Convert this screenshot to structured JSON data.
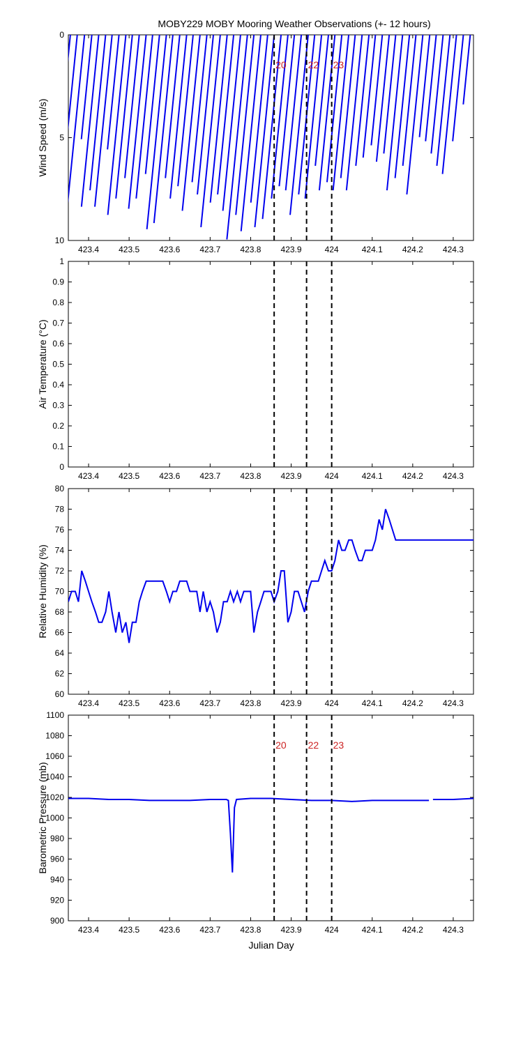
{
  "figure": {
    "title": "MOBY229 MOBY Mooring Weather Observations (+- 12 hours)",
    "xlabel": "Julian Day"
  },
  "marker_lines": [
    {
      "x": 423.858,
      "label": "20"
    },
    {
      "x": 423.938,
      "label": "22"
    },
    {
      "x": 424.0,
      "label": "23"
    }
  ],
  "chart_data": [
    {
      "type": "line",
      "subtype": "wind-stick",
      "name": "wind",
      "ylabel": "Wind Speed (m/s)",
      "xlim": [
        423.35,
        424.35
      ],
      "ylim": [
        0,
        10
      ],
      "y_reversed": true,
      "xticks": [
        "423.4",
        "423.5",
        "423.6",
        "423.7",
        "423.8",
        "423.9",
        "424",
        "424.1",
        "424.2",
        "424.3"
      ],
      "yticks": [
        "0",
        "5",
        "10"
      ],
      "show_marker_labels": true,
      "sticks": [
        {
          "x": 423.355,
          "speed": 6.8
        },
        {
          "x": 423.372,
          "speed": 8.2
        },
        {
          "x": 423.39,
          "speed": 8.9
        },
        {
          "x": 423.408,
          "speed": 5.1
        },
        {
          "x": 423.425,
          "speed": 8.4
        },
        {
          "x": 423.442,
          "speed": 7.6
        },
        {
          "x": 423.458,
          "speed": 8.4
        },
        {
          "x": 423.475,
          "speed": 5.6
        },
        {
          "x": 423.492,
          "speed": 8.8
        },
        {
          "x": 423.508,
          "speed": 8.0
        },
        {
          "x": 423.525,
          "speed": 7.0
        },
        {
          "x": 423.542,
          "speed": 8.5
        },
        {
          "x": 423.558,
          "speed": 8.0
        },
        {
          "x": 423.575,
          "speed": 6.8
        },
        {
          "x": 423.592,
          "speed": 9.5
        },
        {
          "x": 423.608,
          "speed": 9.2
        },
        {
          "x": 423.625,
          "speed": 7.0
        },
        {
          "x": 423.642,
          "speed": 8.0
        },
        {
          "x": 423.658,
          "speed": 7.4
        },
        {
          "x": 423.675,
          "speed": 8.6
        },
        {
          "x": 423.692,
          "speed": 7.2
        },
        {
          "x": 423.708,
          "speed": 7.8
        },
        {
          "x": 423.725,
          "speed": 9.4
        },
        {
          "x": 423.742,
          "speed": 8.2
        },
        {
          "x": 423.758,
          "speed": 7.8
        },
        {
          "x": 423.775,
          "speed": 8.6
        },
        {
          "x": 423.792,
          "speed": 10.0
        },
        {
          "x": 423.808,
          "speed": 8.8
        },
        {
          "x": 423.825,
          "speed": 9.6
        },
        {
          "x": 423.842,
          "speed": 8.2
        },
        {
          "x": 423.858,
          "speed": 9.4
        },
        {
          "x": 423.875,
          "speed": 9.0
        },
        {
          "x": 423.892,
          "speed": 8.0
        },
        {
          "x": 423.908,
          "speed": 7.4
        },
        {
          "x": 423.925,
          "speed": 7.6
        },
        {
          "x": 423.942,
          "speed": 8.8
        },
        {
          "x": 423.958,
          "speed": 7.8
        },
        {
          "x": 423.975,
          "speed": 8.0
        },
        {
          "x": 423.992,
          "speed": 6.4
        },
        {
          "x": 424.008,
          "speed": 7.6
        },
        {
          "x": 424.025,
          "speed": 7.2
        },
        {
          "x": 424.042,
          "speed": 7.6
        },
        {
          "x": 424.058,
          "speed": 7.0
        },
        {
          "x": 424.075,
          "speed": 7.6
        },
        {
          "x": 424.092,
          "speed": 6.4
        },
        {
          "x": 424.108,
          "speed": 6.0
        },
        {
          "x": 424.125,
          "speed": 5.4
        },
        {
          "x": 424.142,
          "speed": 6.2
        },
        {
          "x": 424.158,
          "speed": 5.8
        },
        {
          "x": 424.175,
          "speed": 7.6
        },
        {
          "x": 424.192,
          "speed": 7.0
        },
        {
          "x": 424.208,
          "speed": 6.4
        },
        {
          "x": 424.225,
          "speed": 7.8
        },
        {
          "x": 424.242,
          "speed": 5.0
        },
        {
          "x": 424.258,
          "speed": 5.2
        },
        {
          "x": 424.275,
          "speed": 5.8
        },
        {
          "x": 424.292,
          "speed": 6.4
        },
        {
          "x": 424.308,
          "speed": 6.8
        },
        {
          "x": 424.325,
          "speed": 5.2
        },
        {
          "x": 424.342,
          "speed": 3.4
        }
      ]
    },
    {
      "type": "line",
      "name": "air-temperature",
      "ylabel": "Air Temperature (°C)",
      "xlim": [
        423.35,
        424.35
      ],
      "ylim": [
        0,
        1
      ],
      "xticks": [
        "423.4",
        "423.5",
        "423.6",
        "423.7",
        "423.8",
        "423.9",
        "424",
        "424.1",
        "424.2",
        "424.3"
      ],
      "yticks": [
        "0",
        "0.1",
        "0.2",
        "0.3",
        "0.4",
        "0.5",
        "0.6",
        "0.7",
        "0.8",
        "0.9",
        "1"
      ],
      "show_marker_labels": false,
      "x": [],
      "y": []
    },
    {
      "type": "line",
      "name": "relative-humidity",
      "ylabel": "Relative Humidity (%)",
      "xlim": [
        423.35,
        424.35
      ],
      "ylim": [
        60,
        80
      ],
      "xticks": [
        "423.4",
        "423.5",
        "423.6",
        "423.7",
        "423.8",
        "423.9",
        "424",
        "424.1",
        "424.2",
        "424.3"
      ],
      "yticks": [
        "60",
        "62",
        "64",
        "66",
        "68",
        "70",
        "72",
        "74",
        "76",
        "78",
        "80"
      ],
      "show_marker_labels": false,
      "x": [
        423.35,
        423.358,
        423.367,
        423.375,
        423.383,
        423.392,
        423.4,
        423.408,
        423.417,
        423.425,
        423.433,
        423.442,
        423.45,
        423.458,
        423.467,
        423.475,
        423.483,
        423.492,
        423.5,
        423.508,
        423.517,
        423.525,
        423.533,
        423.542,
        423.55,
        423.558,
        423.567,
        423.575,
        423.583,
        423.592,
        423.6,
        423.608,
        423.617,
        423.625,
        423.633,
        423.642,
        423.65,
        423.658,
        423.667,
        423.675,
        423.683,
        423.692,
        423.7,
        423.708,
        423.717,
        423.725,
        423.733,
        423.742,
        423.75,
        423.758,
        423.767,
        423.775,
        423.783,
        423.792,
        423.8,
        423.808,
        423.817,
        423.825,
        423.833,
        423.842,
        423.85,
        423.858,
        423.867,
        423.875,
        423.883,
        423.892,
        423.9,
        423.908,
        423.917,
        423.925,
        423.933,
        423.942,
        423.95,
        423.958,
        423.967,
        423.975,
        423.983,
        423.992,
        424.0,
        424.008,
        424.017,
        424.025,
        424.033,
        424.042,
        424.05,
        424.058,
        424.067,
        424.075,
        424.083,
        424.092,
        424.1,
        424.108,
        424.117,
        424.125,
        424.133,
        424.142,
        424.15,
        424.158,
        424.167,
        424.175,
        424.183,
        424.192,
        424.2,
        424.208,
        424.217,
        424.225,
        424.233,
        424.242,
        424.25,
        424.258,
        424.267,
        424.275,
        424.283,
        424.292,
        424.3,
        424.308,
        424.317,
        424.325,
        424.333,
        424.342,
        424.35
      ],
      "y": [
        69,
        70,
        70,
        69,
        72,
        71,
        70,
        69,
        68,
        67,
        67,
        68,
        70,
        68,
        66,
        68,
        66,
        67,
        65,
        67,
        67,
        69,
        70,
        71,
        71,
        71,
        71,
        71,
        71,
        70,
        69,
        70,
        70,
        71,
        71,
        71,
        70,
        70,
        70,
        68,
        70,
        68,
        69,
        68,
        66,
        67,
        69,
        69,
        70,
        69,
        70,
        69,
        70,
        70,
        70,
        66,
        68,
        69,
        70,
        70,
        70,
        69,
        70,
        72,
        72,
        67,
        68,
        70,
        70,
        69,
        68,
        70,
        71,
        71,
        71,
        72,
        73,
        72,
        72,
        73,
        75,
        74,
        74,
        75,
        75,
        74,
        73,
        73,
        74,
        74,
        74,
        75,
        77,
        76,
        78,
        77,
        76,
        75,
        75,
        75,
        75,
        75,
        75,
        75,
        75,
        75,
        75,
        75,
        75,
        75,
        75,
        75,
        75,
        75,
        75,
        75,
        75,
        75,
        75,
        75,
        75
      ]
    },
    {
      "type": "line",
      "name": "barometric-pressure",
      "ylabel": "Barometric Pressure (mb)",
      "xlim": [
        423.35,
        424.35
      ],
      "ylim": [
        900,
        1100
      ],
      "xticks": [
        "423.4",
        "423.5",
        "423.6",
        "423.7",
        "423.8",
        "423.9",
        "424",
        "424.1",
        "424.2",
        "424.3"
      ],
      "yticks": [
        "900",
        "920",
        "940",
        "960",
        "980",
        "1000",
        "1020",
        "1040",
        "1060",
        "1080",
        "1100"
      ],
      "show_marker_labels": true,
      "x": [
        423.35,
        423.4,
        423.45,
        423.5,
        423.55,
        423.6,
        423.65,
        423.7,
        423.74,
        423.745,
        423.75,
        423.755,
        423.76,
        423.765,
        423.8,
        423.85,
        423.9,
        423.95,
        424.0,
        424.05,
        424.1,
        424.15,
        424.2,
        424.24,
        null,
        424.25,
        424.3,
        424.35
      ],
      "y": [
        1019,
        1019,
        1018,
        1018,
        1017,
        1017,
        1017,
        1018,
        1018,
        1017,
        985,
        947,
        1010,
        1018,
        1019,
        1019,
        1018,
        1017,
        1017,
        1016,
        1017,
        1017,
        1017,
        1017,
        null,
        1018,
        1018,
        1019
      ]
    }
  ]
}
